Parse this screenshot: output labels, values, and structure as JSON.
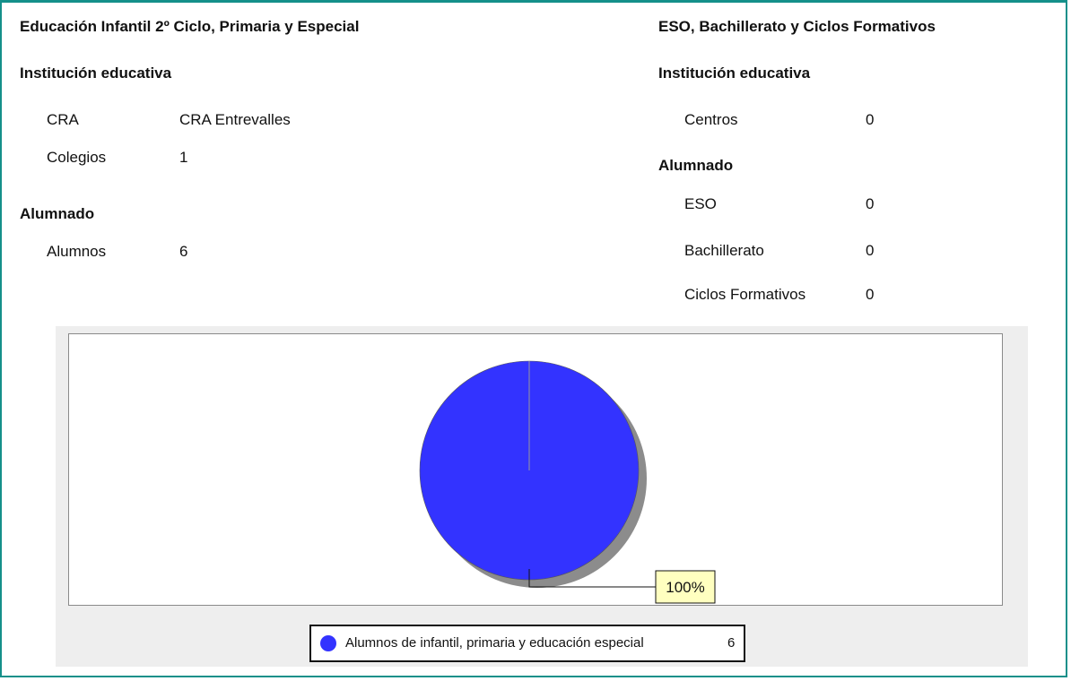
{
  "left": {
    "heading": "Educación Infantil 2º Ciclo, Primaria y Especial",
    "institution_heading": "Institución educativa",
    "institution_rows": [
      {
        "label": "CRA",
        "value": "CRA Entrevalles"
      },
      {
        "label": "Colegios",
        "value": "1"
      }
    ],
    "students_heading": "Alumnado",
    "students_rows": [
      {
        "label": "Alumnos",
        "value": "6"
      }
    ]
  },
  "right": {
    "heading": "ESO, Bachillerato y Ciclos Formativos",
    "institution_heading": "Institución educativa",
    "institution_rows": [
      {
        "label": "Centros",
        "value": "0"
      }
    ],
    "students_heading": "Alumnado",
    "students_rows": [
      {
        "label": "ESO",
        "value": "0"
      },
      {
        "label": "Bachillerato",
        "value": "0"
      },
      {
        "label": "Ciclos Formativos",
        "value": "0"
      }
    ]
  },
  "colors": {
    "frame": "#14908a",
    "slice": "#3333ff",
    "label_bg": "#ffffc0"
  },
  "chart_data": {
    "type": "pie",
    "slices": [
      {
        "label": "Alumnos de infantil, primaria y educación especial",
        "value": 6,
        "percent_label": "100%"
      }
    ],
    "legend": {
      "placement": "bottom",
      "entries": [
        {
          "label": "Alumnos de infantil, primaria y educación especial",
          "value": "6"
        }
      ]
    }
  }
}
